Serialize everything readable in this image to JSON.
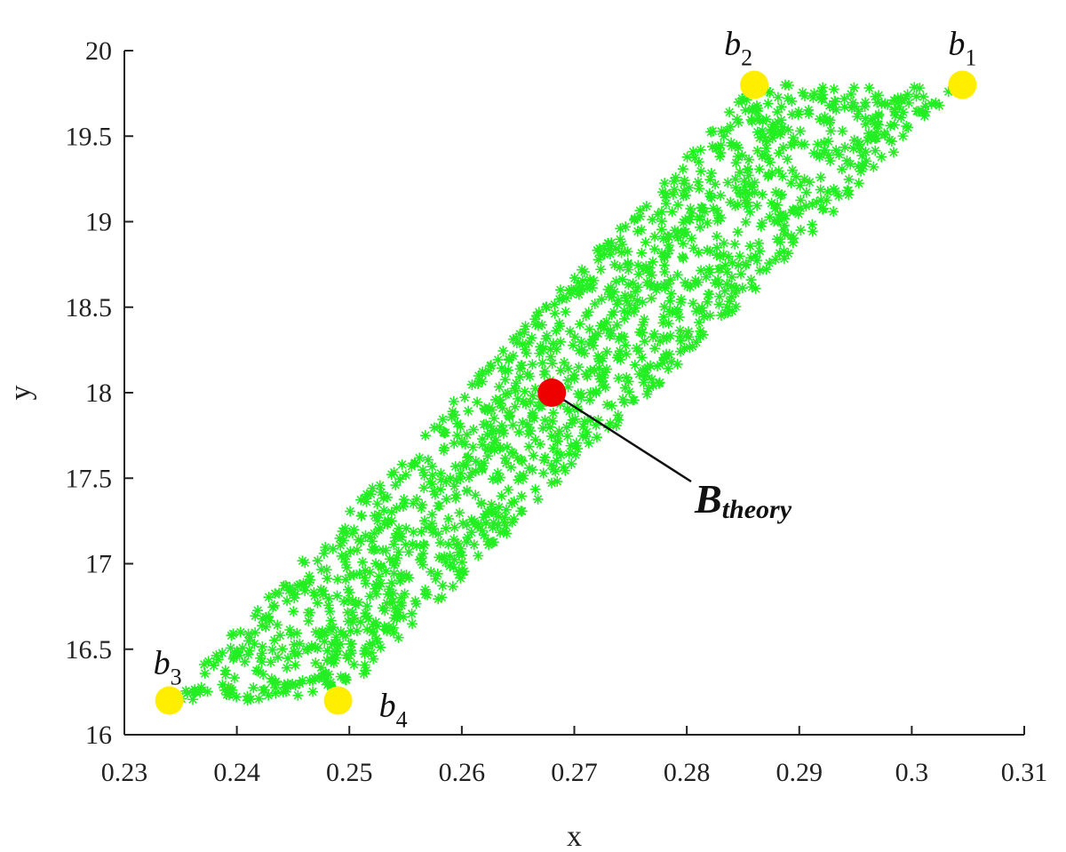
{
  "chart_data": {
    "type": "scatter",
    "xlabel": "x",
    "ylabel": "y",
    "xlim": [
      0.23,
      0.31
    ],
    "ylim": [
      16,
      20
    ],
    "xticks": [
      "0.23",
      "0.24",
      "0.25",
      "0.26",
      "0.27",
      "0.28",
      "0.29",
      "0.3",
      "0.31"
    ],
    "yticks": [
      "16",
      "16.5",
      "17",
      "17.5",
      "18",
      "18.5",
      "19",
      "19.5",
      "20"
    ],
    "grid": false,
    "scatter_region": {
      "marker": "asterisk",
      "color": "#22ee22",
      "vertices": [
        {
          "x": 0.3045,
          "y": 19.8
        },
        {
          "x": 0.286,
          "y": 19.8
        },
        {
          "x": 0.234,
          "y": 16.2
        },
        {
          "x": 0.249,
          "y": 16.2
        }
      ]
    },
    "vertex_points": [
      {
        "label": "b",
        "subscript": "1",
        "x": 0.3045,
        "y": 19.8,
        "color": "#ffee00"
      },
      {
        "label": "b",
        "subscript": "2",
        "x": 0.286,
        "y": 19.8,
        "color": "#ffee00"
      },
      {
        "label": "b",
        "subscript": "3",
        "x": 0.234,
        "y": 16.2,
        "color": "#ffee00"
      },
      {
        "label": "b",
        "subscript": "4",
        "x": 0.249,
        "y": 16.2,
        "color": "#ffee00"
      }
    ],
    "theory_point": {
      "label": "B",
      "subscript": "theory",
      "x": 0.268,
      "y": 18.0,
      "color": "#ee0000"
    }
  }
}
